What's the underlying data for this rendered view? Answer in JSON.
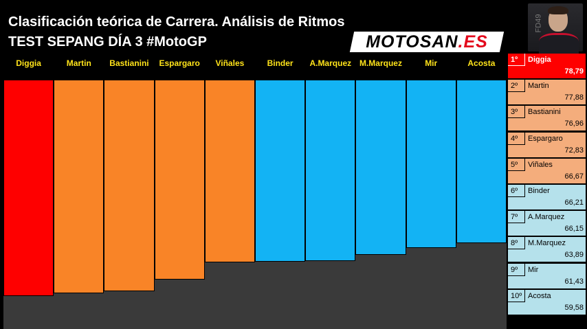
{
  "header": {
    "title": "Clasificación teórica de Carrera. Análisis de Ritmos",
    "subtitle": "TEST SEPANG DÍA 3 #MotoGP"
  },
  "logo": {
    "part1": "MOTOSAN",
    "part2": ".ES"
  },
  "photo": {
    "number_text": "FD49"
  },
  "colors": {
    "first": "#fe0000",
    "orange": "#f98427",
    "blue": "#13b3f4",
    "label": "#ffe31a",
    "rank_orange": "#f4ad7c",
    "rank_blue": "#b5e1eb"
  },
  "chart_data": {
    "type": "bar",
    "categories": [
      "Diggia",
      "Martin",
      "Bastianini",
      "Espargaro",
      "Viñales",
      "Binder",
      "A.Marquez",
      "M.Marquez",
      "Mir",
      "Acosta"
    ],
    "values": [
      78.79,
      77.88,
      76.96,
      72.83,
      66.67,
      66.21,
      66.15,
      63.89,
      61.43,
      59.58
    ],
    "bar_colors": [
      "first",
      "orange",
      "orange",
      "orange",
      "orange",
      "blue",
      "blue",
      "blue",
      "blue",
      "blue"
    ],
    "direction": "downward from top",
    "title": "Clasificación teórica de Carrera. Análisis de Ritmos",
    "xlabel": "",
    "ylabel": ""
  },
  "ranking": [
    {
      "pos": "1º",
      "name": "Diggia",
      "value": "78,79",
      "color": "first"
    },
    {
      "pos": "2º",
      "name": "Martin",
      "value": "77,88",
      "color": "orange"
    },
    {
      "pos": "3º",
      "name": "Bastianini",
      "value": "76,96",
      "color": "orange"
    },
    {
      "pos": "4º",
      "name": "Espargaro",
      "value": "72,83",
      "color": "orange"
    },
    {
      "pos": "5º",
      "name": "Viñales",
      "value": "66,67",
      "color": "orange"
    },
    {
      "pos": "6º",
      "name": "Binder",
      "value": "66,21",
      "color": "blue"
    },
    {
      "pos": "7º",
      "name": "A.Marquez",
      "value": "66,15",
      "color": "blue"
    },
    {
      "pos": "8º",
      "name": "M.Marquez",
      "value": "63,89",
      "color": "blue"
    },
    {
      "pos": "9º",
      "name": "Mir",
      "value": "61,43",
      "color": "blue"
    },
    {
      "pos": "10º",
      "name": "Acosta",
      "value": "59,58",
      "color": "blue"
    }
  ]
}
